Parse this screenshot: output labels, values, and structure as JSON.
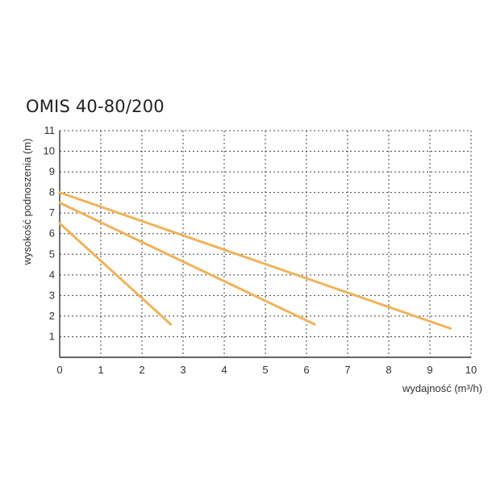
{
  "chart_data": {
    "type": "line",
    "title": "OMIS 40-80/200",
    "xlabel": "wydajność (m³/h)",
    "ylabel": "wysokość podnoszenia (m)",
    "xlim": [
      0,
      10
    ],
    "ylim": [
      0,
      11
    ],
    "x_ticks": [
      "0",
      "1",
      "2",
      "3",
      "4",
      "5",
      "6",
      "7",
      "8",
      "9",
      "10"
    ],
    "y_ticks": [
      "1",
      "2",
      "3",
      "4",
      "5",
      "6",
      "7",
      "8",
      "9",
      "10",
      "11"
    ],
    "grid": "dashed",
    "series": [
      {
        "x": [
          0,
          2.7
        ],
        "y": [
          6.5,
          1.6
        ],
        "color": "#f2b25a"
      },
      {
        "x": [
          0,
          6.2
        ],
        "y": [
          7.5,
          1.6
        ],
        "color": "#f2b25a"
      },
      {
        "x": [
          0,
          9.5
        ],
        "y": [
          8.0,
          1.4
        ],
        "color": "#f2b25a"
      }
    ]
  }
}
